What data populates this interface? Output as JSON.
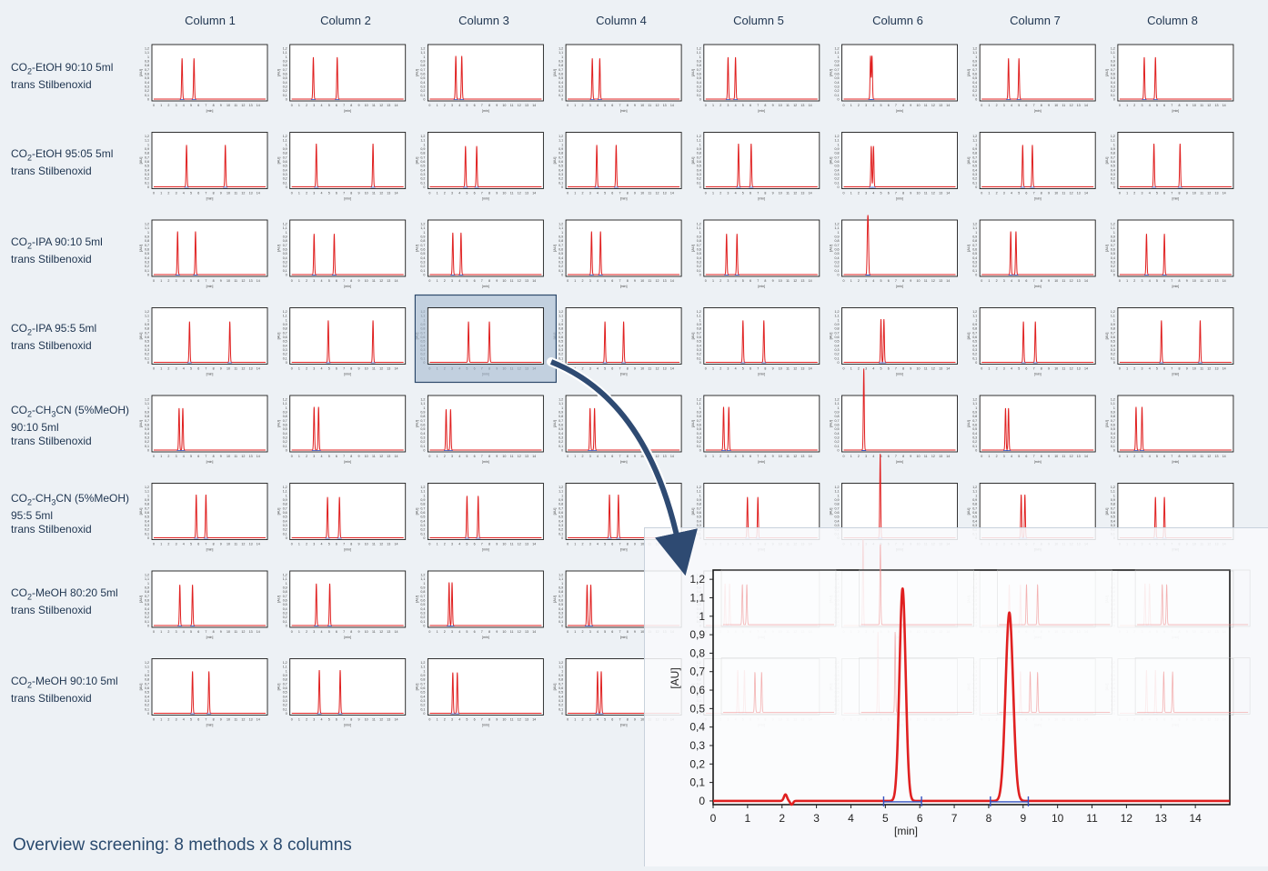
{
  "caption": "Overview screening: 8 methods x 8 columns",
  "columns": [
    "Column 1",
    "Column 2",
    "Column 3",
    "Column 4",
    "Column 5",
    "Column 6",
    "Column 7",
    "Column 8"
  ],
  "rows": [
    {
      "lines": [
        {
          "pre": "CO",
          "sub": "2",
          "post": "-EtOH 90:10 5ml"
        },
        {
          "pre": "trans Stilbenoxid",
          "sub": "",
          "post": ""
        }
      ]
    },
    {
      "lines": [
        {
          "pre": "CO",
          "sub": "2",
          "post": "-EtOH 95:05 5ml"
        },
        {
          "pre": "trans Stilbenoxid",
          "sub": "",
          "post": ""
        }
      ]
    },
    {
      "lines": [
        {
          "pre": "CO",
          "sub": "2",
          "post": "-IPA 90:10 5ml"
        },
        {
          "pre": "trans Stilbenoxid",
          "sub": "",
          "post": ""
        }
      ]
    },
    {
      "lines": [
        {
          "pre": "CO",
          "sub": "2",
          "post": "-IPA 95:5 5ml"
        },
        {
          "pre": "trans Stilbenoxid",
          "sub": "",
          "post": ""
        }
      ]
    },
    {
      "lines": [
        {
          "pre": "CO",
          "sub": "2",
          "post": "-CH"
        },
        {
          "pre": "90:10 5ml",
          "sub": "",
          "post": ""
        },
        {
          "pre": "trans Stilbenoxid",
          "sub": "",
          "post": ""
        }
      ],
      "ch3cn": true
    },
    {
      "lines": [
        {
          "pre": "CO",
          "sub": "2",
          "post": "-CH"
        },
        {
          "pre": "95:5 5ml",
          "sub": "",
          "post": ""
        },
        {
          "pre": "trans Stilbenoxid",
          "sub": "",
          "post": ""
        }
      ],
      "ch3cn": true
    },
    {
      "lines": [
        {
          "pre": "CO",
          "sub": "2",
          "post": "-MeOH 80:20 5ml"
        },
        {
          "pre": "trans Stilbenoxid",
          "sub": "",
          "post": ""
        }
      ]
    },
    {
      "lines": [
        {
          "pre": "CO",
          "sub": "2",
          "post": "-MeOH 90:10 5ml"
        },
        {
          "pre": "trans Stilbenoxid",
          "sub": "",
          "post": ""
        }
      ]
    }
  ],
  "ch3cn_suffix": {
    "a": "CH",
    "sub1": "3",
    "b": "CN (5%MeOH)"
  },
  "chart_data": {
    "type": "line",
    "title": "",
    "xlabel": "[min]",
    "ylabel": "[AU]",
    "xlim": [
      0,
      15
    ],
    "ylim": [
      -0.02,
      1.25
    ],
    "xticks": [
      0,
      1,
      2,
      3,
      4,
      5,
      6,
      7,
      8,
      9,
      10,
      11,
      12,
      13,
      14
    ],
    "yticks": [
      "0",
      "0,1",
      "0,2",
      "0,3",
      "0,4",
      "0,5",
      "0,6",
      "0,7",
      "0,8",
      "0,9",
      "1",
      "1,1",
      "1,2"
    ],
    "series": [
      {
        "peaks": [
          {
            "rt": 5.5,
            "height": 1.15,
            "width": 0.09
          },
          {
            "rt": 8.6,
            "height": 1.02,
            "width": 0.11
          }
        ],
        "disturbance_rt": 2.1
      }
    ],
    "line_color": "#e02020",
    "overview_peaks": [
      [
        [
          3.8,
          5.4
        ],
        [
          2.9,
          6.1
        ],
        [
          3.5,
          4.3
        ],
        [
          3.3,
          4.3
        ],
        [
          3.0,
          4.0
        ],
        [
          3.6,
          3.8
        ],
        [
          3.6,
          5.0
        ],
        [
          3.3,
          4.8
        ]
      ],
      [
        [
          4.4,
          9.6
        ],
        [
          3.3,
          10.9
        ],
        [
          4.8,
          6.3
        ],
        [
          3.9,
          6.5
        ],
        [
          4.4,
          6.1
        ],
        [
          3.7,
          4.0
        ],
        [
          5.5,
          6.8
        ],
        [
          4.6,
          8.1
        ]
      ],
      [
        [
          3.2,
          5.6
        ],
        [
          3.0,
          5.7
        ],
        [
          3.1,
          4.2
        ],
        [
          3.2,
          4.4
        ],
        [
          2.8,
          4.2
        ],
        [
          3.2,
          3.3
        ],
        [
          3.9,
          4.6
        ],
        [
          3.6,
          6.0
        ]
      ],
      [
        [
          4.8,
          10.2
        ],
        [
          4.9,
          10.9
        ],
        [
          5.2,
          8.0
        ],
        [
          5.0,
          7.5
        ],
        [
          5.0,
          7.8
        ],
        [
          5.0,
          5.4
        ],
        [
          5.6,
          7.2
        ],
        [
          5.6,
          10.8
        ]
      ],
      [
        [
          3.4,
          3.9
        ],
        [
          3.0,
          3.6
        ],
        [
          2.2,
          2.8
        ],
        [
          3.0,
          3.6
        ],
        [
          2.4,
          3.1
        ],
        [
          2.7,
          2.7
        ],
        [
          3.2,
          3.6
        ],
        [
          2.2,
          3.0
        ]
      ],
      [
        [
          5.7,
          7.0
        ],
        [
          4.8,
          6.4
        ],
        [
          5.0,
          6.5
        ],
        [
          5.6,
          6.8
        ],
        [
          5.6,
          7.0
        ],
        [
          4.9,
          4.9
        ],
        [
          5.3,
          5.8
        ],
        [
          4.8,
          6.0
        ]
      ],
      [
        [
          3.5,
          5.2
        ],
        [
          3.3,
          5.1
        ],
        [
          2.6,
          3.0
        ],
        [
          2.6,
          3.1
        ],
        [
          2.6,
          3.2
        ],
        [
          2.6,
          2.6
        ],
        [
          3.7,
          5.2
        ],
        [
          3.4,
          4.0
        ]
      ],
      [
        [
          5.2,
          7.4
        ],
        [
          3.7,
          6.5
        ],
        [
          3.1,
          3.7
        ],
        [
          4.0,
          4.5
        ],
        [
          4.3,
          5.2
        ],
        [
          4.6,
          4.6
        ],
        [
          4.2,
          5.2
        ],
        [
          3.6,
          4.8
        ]
      ]
    ],
    "mini_yticks": [
      "0",
      "0,1",
      "0,2",
      "0,3",
      "0,4",
      "0,5",
      "0,6",
      "0,7",
      "0,8",
      "0,9",
      "1",
      "1,1",
      "1,2"
    ],
    "highlight_cell": {
      "row": 4,
      "column": 3
    }
  }
}
